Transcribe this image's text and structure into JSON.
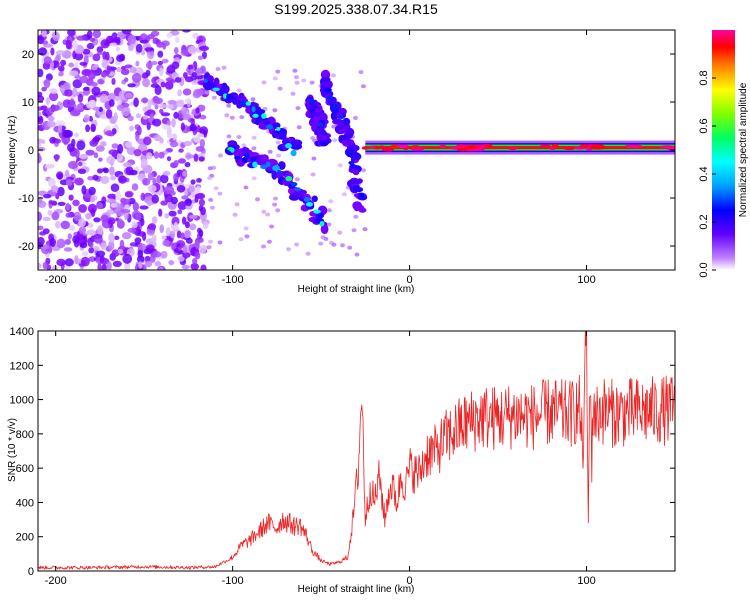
{
  "title": "S199.2025.338.07.34.R15",
  "chart_data": [
    {
      "type": "heatmap",
      "name": "spectrogram",
      "xlabel": "Height of straight line (km)",
      "ylabel": "Frequency (Hz)",
      "xlim": [
        -210,
        150
      ],
      "ylim": [
        -25,
        25
      ],
      "xticks": [
        -200,
        -100,
        0,
        100
      ],
      "xtick_labels": [
        "-200",
        "-100",
        "0",
        "100"
      ],
      "yticks": [
        20,
        10,
        0,
        -10,
        -20
      ],
      "ytick_labels": [
        "20",
        "10",
        "0",
        "-10",
        "-20"
      ],
      "colorbar": {
        "label": "Normalized spectral amplitude",
        "range": [
          0.0,
          1.0
        ],
        "ticks": [
          0.0,
          0.2,
          0.4,
          0.6,
          0.8
        ],
        "tick_labels": [
          "0.0",
          "0.2",
          "0.4",
          "0.6",
          "0.8"
        ],
        "colormap": [
          "#ffffff",
          "#8000ff",
          "#0000ff",
          "#00ffff",
          "#00ff00",
          "#ffff00",
          "#ff8000",
          "#ff0000",
          "#ff00c0"
        ]
      },
      "features": [
        {
          "name": "noise-region",
          "x_range": [
            -210,
            -115
          ],
          "f_range": [
            -25,
            25
          ],
          "amplitude": 0.1
        },
        {
          "name": "carrier-track",
          "x_range": [
            -25,
            150
          ],
          "frequency": 0.5,
          "amplitude": 0.9
        },
        {
          "name": "upper-branch",
          "points": [
            [
              -115,
              14
            ],
            [
              -95,
              10
            ],
            [
              -80,
              6
            ],
            [
              -65,
              0
            ]
          ],
          "amplitude": 0.3
        },
        {
          "name": "lower-branch",
          "points": [
            [
              -102,
              0
            ],
            [
              -90,
              -2
            ],
            [
              -75,
              -4
            ],
            [
              -60,
              -10
            ],
            [
              -48,
              -15
            ]
          ],
          "amplitude": 0.35
        },
        {
          "name": "mid-streak-1",
          "points": [
            [
              -48,
              15
            ],
            [
              -38,
              5
            ],
            [
              -32,
              -2
            ],
            [
              -28,
              -12
            ]
          ],
          "amplitude": 0.2
        },
        {
          "name": "mid-streak-2",
          "points": [
            [
              -55,
              10
            ],
            [
              -48,
              2
            ]
          ],
          "amplitude": 0.2
        }
      ]
    },
    {
      "type": "line",
      "name": "snr",
      "xlabel": "Height of straight line (km)",
      "ylabel": "SNR (10 * v/v)",
      "xlim": [
        -210,
        150
      ],
      "ylim": [
        0,
        1400
      ],
      "xticks": [
        -200,
        -100,
        0,
        100
      ],
      "xtick_labels": [
        "-200",
        "-100",
        "0",
        "100"
      ],
      "yticks": [
        0,
        200,
        400,
        600,
        800,
        1000,
        1200,
        1400
      ],
      "ytick_labels": [
        "0",
        "200",
        "400",
        "600",
        "800",
        "1000",
        "1200",
        "1400"
      ],
      "color": "#ee2222",
      "series": [
        {
          "name": "SNR",
          "x": [
            -210,
            -180,
            -150,
            -125,
            -110,
            -100,
            -95,
            -90,
            -85,
            -80,
            -75,
            -72,
            -68,
            -65,
            -62,
            -58,
            -55,
            -50,
            -45,
            -40,
            -35,
            -32,
            -29,
            -27,
            -25,
            -22,
            -20,
            -17,
            -14,
            -12,
            -10,
            -7,
            -5,
            -2,
            0,
            5,
            10,
            15,
            20,
            25,
            30,
            40,
            50,
            60,
            70,
            80,
            90,
            96,
            98,
            100,
            101,
            102,
            103,
            104,
            105,
            108,
            115,
            130,
            150
          ],
          "y": [
            20,
            20,
            25,
            20,
            25,
            80,
            150,
            180,
            230,
            280,
            250,
            300,
            280,
            260,
            270,
            200,
            120,
            60,
            40,
            50,
            80,
            300,
            600,
            1050,
            300,
            500,
            400,
            550,
            300,
            450,
            500,
            400,
            550,
            500,
            600,
            560,
            690,
            700,
            770,
            810,
            850,
            900,
            890,
            910,
            900,
            930,
            910,
            950,
            700,
            1400,
            250,
            1280,
            600,
            1050,
            890,
            940,
            920,
            930,
            940
          ]
        }
      ]
    }
  ]
}
